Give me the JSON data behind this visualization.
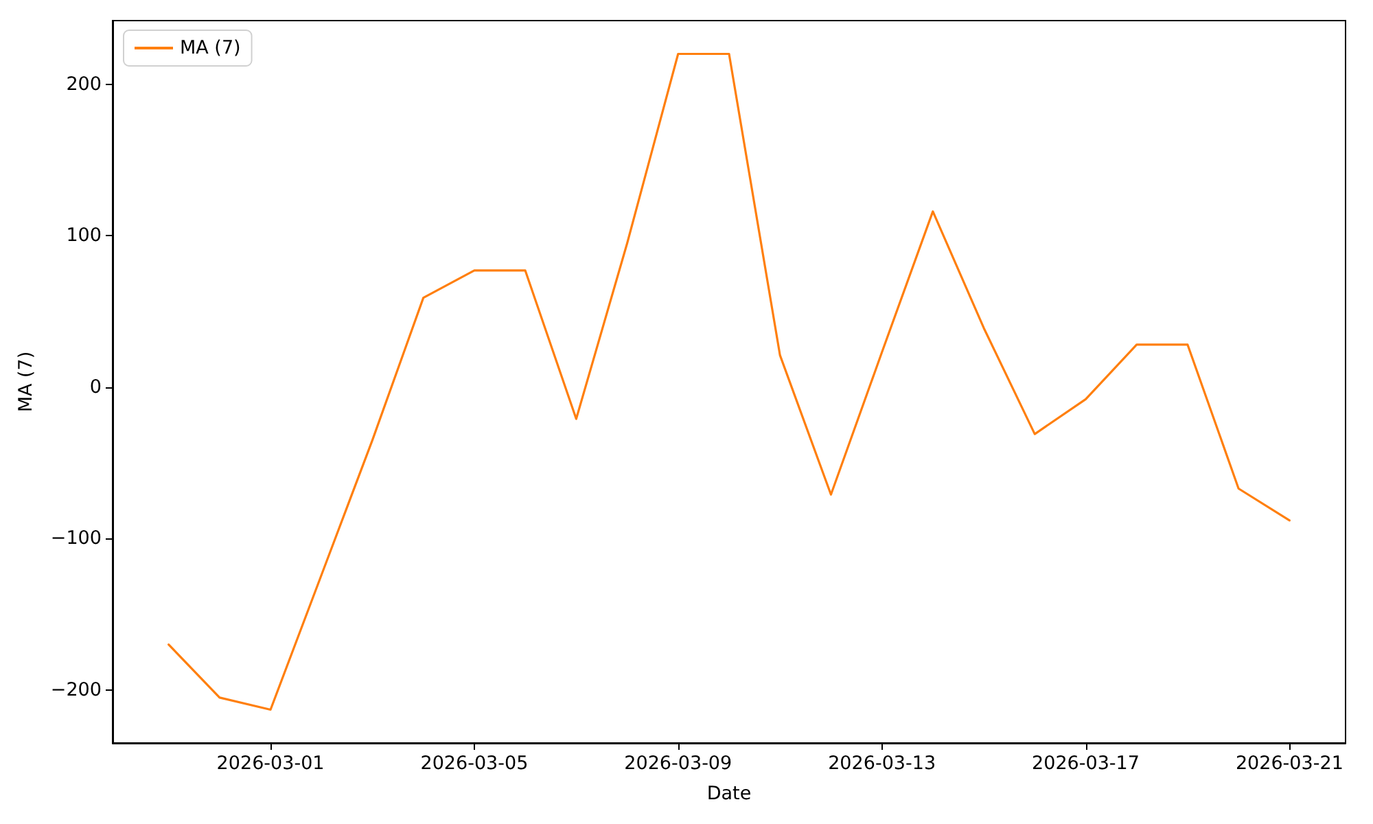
{
  "chart_data": {
    "type": "line",
    "xlabel": "Date",
    "ylabel": "MA (7)",
    "x": [
      "2026-02-27",
      "2026-02-28",
      "2026-03-01",
      "2026-03-02",
      "2026-03-03",
      "2026-03-04",
      "2026-03-05",
      "2026-03-06",
      "2026-03-07",
      "2026-03-08",
      "2026-03-09",
      "2026-03-10",
      "2026-03-11",
      "2026-03-12",
      "2026-03-13",
      "2026-03-14",
      "2026-03-15",
      "2026-03-16",
      "2026-03-17",
      "2026-03-18",
      "2026-03-19",
      "2026-03-20",
      "2026-03-21"
    ],
    "series": [
      {
        "name": "MA (7)",
        "color": "#ff7f0e",
        "values": [
          -170,
          -205,
          -213,
          -124,
          -35,
          59,
          77,
          77,
          -21,
          95,
          220,
          220,
          21,
          -71,
          23,
          116,
          39,
          -31,
          -8,
          28,
          28,
          -67,
          -88
        ]
      }
    ],
    "xlim": [
      "2026-02-25T21:36",
      "2026-03-22T02:24"
    ],
    "xticks": [
      "2026-03-01",
      "2026-03-05",
      "2026-03-09",
      "2026-03-13",
      "2026-03-17",
      "2026-03-21"
    ],
    "ylim": [
      -235,
      242
    ],
    "yticks": [
      {
        "value": -200,
        "label": "−200"
      },
      {
        "value": -100,
        "label": "−100"
      },
      0,
      100,
      200
    ],
    "legend": "top left",
    "line_style": "solid"
  }
}
